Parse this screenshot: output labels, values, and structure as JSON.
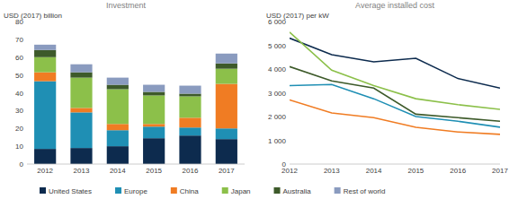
{
  "chart_data": [
    {
      "type": "bar",
      "title": "Investment",
      "y_label": "USD (2017) billion",
      "stacked": true,
      "grid": false,
      "categories": [
        "2012",
        "2013",
        "2014",
        "2015",
        "2016",
        "2017"
      ],
      "ylim": [
        0,
        80
      ],
      "yticks": [
        0,
        10,
        20,
        30,
        40,
        50,
        60,
        70,
        80
      ],
      "series": [
        {
          "name": "United States",
          "color": "#0d2b4e",
          "values": [
            8.5,
            9,
            10,
            14.5,
            16,
            14
          ]
        },
        {
          "name": "Europe",
          "color": "#1f8fb4",
          "values": [
            38,
            20,
            9,
            6.5,
            4.5,
            6
          ]
        },
        {
          "name": "China",
          "color": "#f07c23",
          "values": [
            5,
            2.5,
            3.5,
            1.5,
            5.5,
            25
          ]
        },
        {
          "name": "Japan",
          "color": "#8cc04a",
          "values": [
            8.5,
            17,
            19.5,
            16,
            12,
            8.5
          ]
        },
        {
          "name": "Australia",
          "color": "#3d5a2a",
          "values": [
            4,
            3,
            2.5,
            2,
            1.5,
            3
          ]
        },
        {
          "name": "Rest of world",
          "color": "#8a9bbf",
          "values": [
            3,
            4.5,
            4,
            4,
            4.5,
            5.5
          ]
        }
      ]
    },
    {
      "type": "line",
      "title": "Average installed cost",
      "y_label": "USD (2017) per kW",
      "grid": false,
      "categories": [
        "2012",
        "2013",
        "2014",
        "2015",
        "2016",
        "2017"
      ],
      "ylim": [
        0,
        6000
      ],
      "yticks": [
        0,
        {
          "value": 1000,
          "label": "1 000"
        },
        {
          "value": 2000,
          "label": "2 000"
        },
        {
          "value": 3000,
          "label": "3 000"
        },
        {
          "value": 4000,
          "label": "4 000"
        },
        {
          "value": 5000,
          "label": "5 000"
        },
        {
          "value": 6000,
          "label": "6 000"
        }
      ],
      "series": [
        {
          "name": "United States",
          "color": "#0d2b4e",
          "values": [
            5300,
            4600,
            4300,
            4450,
            3600,
            3200
          ]
        },
        {
          "name": "Europe",
          "color": "#1f8fb4",
          "values": [
            3300,
            3350,
            2750,
            2000,
            1800,
            1550
          ]
        },
        {
          "name": "China",
          "color": "#f07c23",
          "values": [
            2700,
            2150,
            1950,
            1550,
            1350,
            1250
          ]
        },
        {
          "name": "Japan",
          "color": "#8cc04a",
          "values": [
            5550,
            3950,
            3300,
            2750,
            2500,
            2300
          ]
        },
        {
          "name": "Australia",
          "color": "#3d5a2a",
          "values": [
            4100,
            3500,
            3200,
            2100,
            1950,
            1800
          ]
        }
      ]
    }
  ]
}
